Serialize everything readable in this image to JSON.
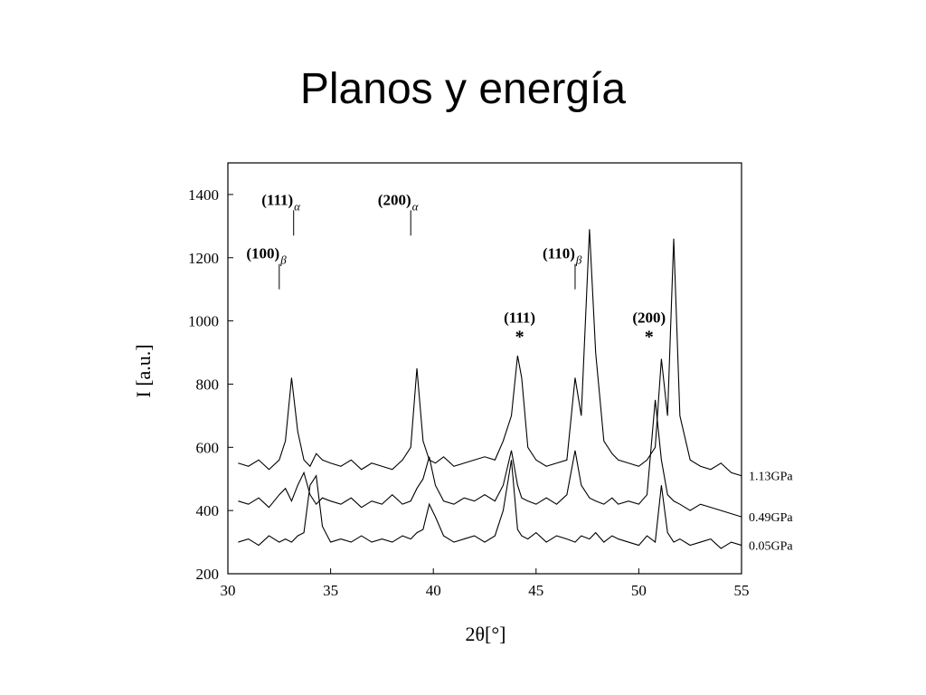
{
  "slide": {
    "title": "Planos y energía"
  },
  "chart_data": {
    "type": "line",
    "x_label": "2θ[°]",
    "y_label": "I [a.u.]",
    "x": [
      30.5,
      31,
      31.5,
      32,
      32.5,
      32.8,
      33.1,
      33.4,
      33.7,
      34,
      34.3,
      34.6,
      35,
      35.5,
      36,
      36.5,
      37,
      37.5,
      38,
      38.5,
      38.9,
      39.2,
      39.5,
      39.8,
      40.1,
      40.5,
      41,
      41.5,
      42,
      42.5,
      43,
      43.4,
      43.8,
      44.1,
      44.3,
      44.6,
      45,
      45.5,
      46,
      46.5,
      46.9,
      47.2,
      47.6,
      47.9,
      48.3,
      48.7,
      49,
      49.5,
      50,
      50.4,
      50.8,
      51.1,
      51.4,
      51.7,
      52,
      52.5,
      53,
      53.5,
      54,
      54.5,
      55
    ],
    "series": [
      {
        "name": "1.13GPa",
        "color": "#000000",
        "values": [
          550,
          540,
          560,
          530,
          560,
          620,
          820,
          650,
          560,
          540,
          580,
          560,
          550,
          540,
          560,
          530,
          550,
          540,
          530,
          560,
          600,
          850,
          620,
          560,
          550,
          570,
          540,
          550,
          560,
          570,
          560,
          620,
          700,
          890,
          820,
          600,
          560,
          540,
          550,
          560,
          820,
          700,
          1290,
          900,
          620,
          580,
          560,
          550,
          540,
          560,
          600,
          880,
          700,
          1260,
          700,
          560,
          540,
          530,
          550,
          520,
          510
        ]
      },
      {
        "name": "0.49GPa",
        "color": "#000000",
        "values": [
          430,
          420,
          440,
          410,
          450,
          470,
          430,
          480,
          520,
          450,
          420,
          440,
          430,
          420,
          440,
          410,
          430,
          420,
          450,
          420,
          430,
          470,
          500,
          570,
          480,
          430,
          420,
          440,
          430,
          450,
          430,
          480,
          590,
          480,
          440,
          430,
          420,
          440,
          420,
          450,
          590,
          480,
          440,
          430,
          420,
          440,
          420,
          430,
          420,
          450,
          750,
          560,
          450,
          430,
          420,
          400,
          420,
          410,
          400,
          390,
          380
        ]
      },
      {
        "name": "0.05GPa",
        "color": "#000000",
        "values": [
          300,
          310,
          290,
          320,
          300,
          310,
          300,
          320,
          330,
          480,
          510,
          350,
          300,
          310,
          300,
          320,
          300,
          310,
          300,
          320,
          310,
          330,
          340,
          420,
          380,
          320,
          300,
          310,
          320,
          300,
          320,
          400,
          560,
          340,
          320,
          310,
          330,
          300,
          320,
          310,
          300,
          320,
          310,
          330,
          300,
          320,
          310,
          300,
          290,
          320,
          300,
          480,
          330,
          300,
          310,
          290,
          300,
          310,
          280,
          300,
          290
        ]
      }
    ],
    "annotations": [
      {
        "text": "(111)",
        "sub": "α",
        "x": 33.2,
        "y": 1270
      },
      {
        "text": "(200)",
        "sub": "α",
        "x": 38.9,
        "y": 1270
      },
      {
        "text": "(100)",
        "sub": "β",
        "x": 32.5,
        "y": 1100
      },
      {
        "text": "(110)",
        "sub": "β",
        "x": 46.9,
        "y": 1100
      },
      {
        "text": "(111)",
        "symbol": "*",
        "x": 44.2,
        "y": 960
      },
      {
        "text": "(200)",
        "symbol": "*",
        "x": 50.5,
        "y": 960
      }
    ],
    "xlim": [
      30,
      55
    ],
    "ylim": [
      200,
      1500
    ],
    "xticks": [
      30,
      35,
      40,
      45,
      50,
      55
    ],
    "yticks": [
      200,
      400,
      600,
      800,
      1000,
      1200,
      1400
    ]
  }
}
